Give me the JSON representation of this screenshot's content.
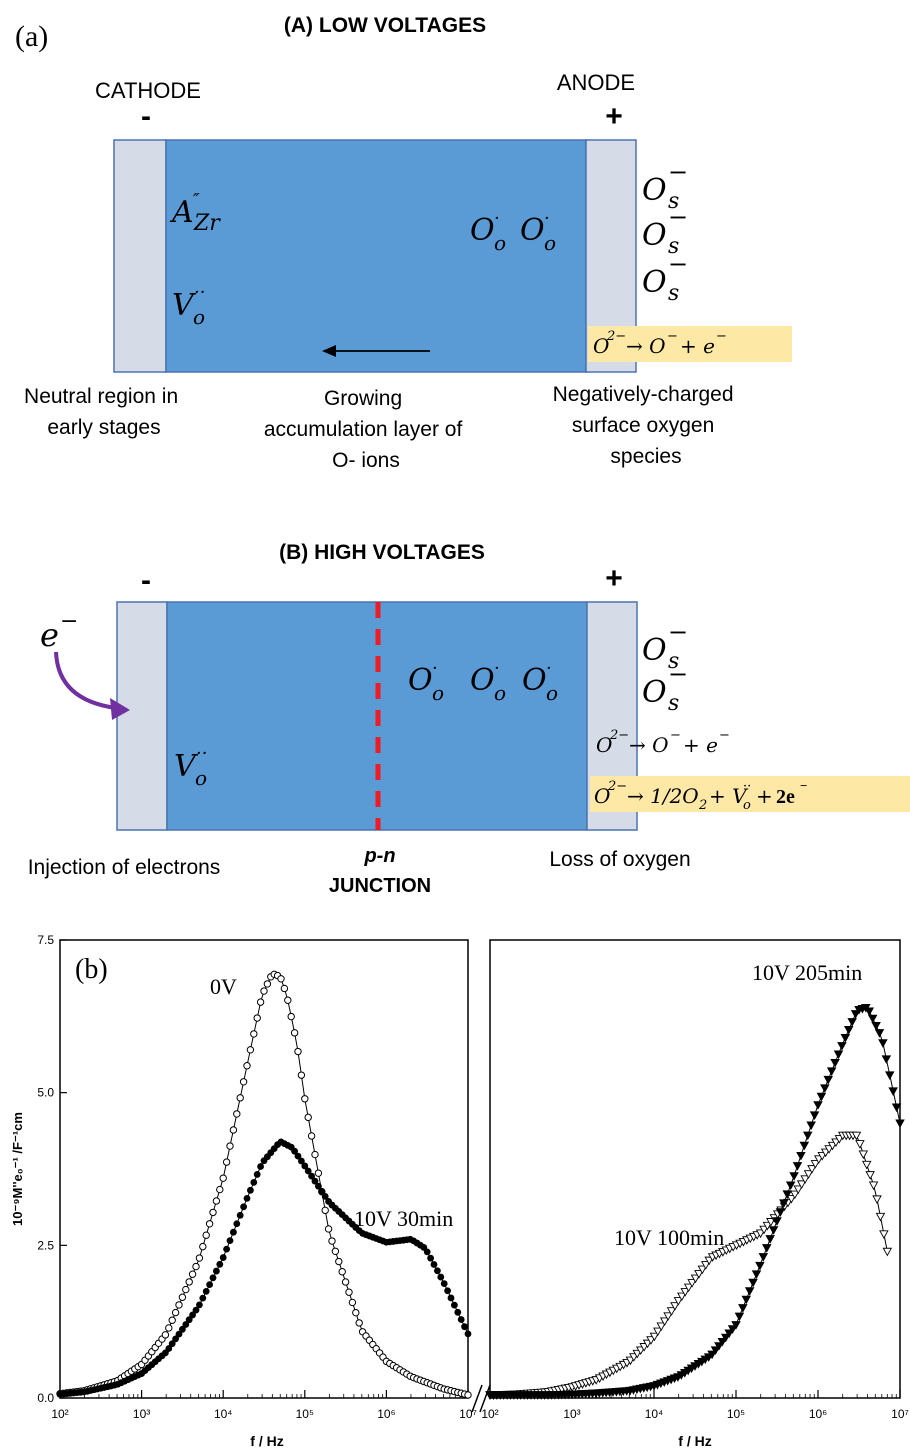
{
  "panel_a": {
    "label": "(a)",
    "title": "(A) LOW VOLTAGES",
    "cathode_label": "CATHODE",
    "anode_label": "ANODE",
    "minus_sign": "-",
    "plus_sign": "+",
    "species_left_top": "A″Zr",
    "species_left_bottom": "V··o",
    "species_center": "O·o O·o",
    "surface_species": [
      "O−s",
      "O−s",
      "O−s"
    ],
    "reaction": "O2− → O− + e−",
    "caption_left": [
      "Neutral region in",
      "early stages"
    ],
    "caption_center": [
      "Growing",
      "accumulation layer of",
      "O- ions"
    ],
    "caption_right": [
      "Negatively-charged",
      "surface oxygen",
      "species"
    ]
  },
  "panel_b_diagram": {
    "title": "(B) HIGH VOLTAGES",
    "minus_sign": "-",
    "plus_sign": "+",
    "electron": "e−",
    "species_left": "V··o",
    "species_center": "O·o O·o O·o",
    "surface_species": [
      "O−s",
      "O−s"
    ],
    "reaction_1": "O2− → O− + e−",
    "reaction_2": "O2− → 1/2O2 + V··o + 2e−",
    "caption_left": "Injection of electrons",
    "caption_center": [
      "p-n",
      "JUNCTION"
    ],
    "caption_right": "Loss of oxygen"
  },
  "colors": {
    "bulk": "#5b9bd5",
    "electrode": "#d6dce7",
    "highlight": "#fde8a6",
    "junction": "#ee1c25",
    "arrow": "#7030a0"
  },
  "chart_data": {
    "type": "scatter",
    "panel_label": "(b)",
    "xlabel": "f / Hz",
    "ylabel": "10⁻⁹M''e₀⁻¹ /F⁻¹cm",
    "x_scale": "log",
    "xlim": [
      100,
      10000000
    ],
    "ylim": [
      0,
      7.5
    ],
    "y_ticks": [
      "0.0",
      "2.5",
      "5.0",
      "7.5"
    ],
    "x_tick_labels": [
      "10²",
      "10³",
      "10⁴",
      "10⁵",
      "10⁶",
      "10⁷"
    ],
    "broken_axis": true,
    "legend": "none",
    "left_series": [
      {
        "name": "0V",
        "marker": "open-circle",
        "x": [
          100,
          200,
          500,
          1000,
          2000,
          5000,
          10000,
          20000,
          30000,
          40000,
          50000,
          60000,
          80000,
          100000,
          200000,
          500000,
          1000000,
          2000000,
          5000000,
          10000000
        ],
        "y": [
          0.07,
          0.12,
          0.28,
          0.55,
          1.05,
          2.25,
          3.6,
          5.5,
          6.6,
          6.95,
          6.9,
          6.6,
          5.8,
          4.9,
          2.7,
          1.1,
          0.6,
          0.35,
          0.15,
          0.05
        ]
      },
      {
        "name": "10V 30min",
        "marker": "filled-circle",
        "x": [
          100,
          200,
          500,
          1000,
          2000,
          5000,
          10000,
          20000,
          30000,
          50000,
          70000,
          100000,
          200000,
          500000,
          1000000,
          2000000,
          3000000,
          5000000,
          10000000
        ],
        "y": [
          0.06,
          0.1,
          0.22,
          0.4,
          0.75,
          1.5,
          2.3,
          3.3,
          3.85,
          4.2,
          4.1,
          3.8,
          3.2,
          2.7,
          2.55,
          2.6,
          2.45,
          1.9,
          1.05
        ]
      }
    ],
    "right_series": [
      {
        "name": "10V 100min",
        "marker": "open-triangle-down",
        "x": [
          100,
          200,
          500,
          1000,
          2000,
          5000,
          10000,
          20000,
          50000,
          100000,
          200000,
          500000,
          1000000,
          2000000,
          3000000,
          5000000,
          7000000
        ],
        "y": [
          0.05,
          0.06,
          0.1,
          0.18,
          0.3,
          0.6,
          1.0,
          1.6,
          2.3,
          2.5,
          2.7,
          3.3,
          3.9,
          4.3,
          4.3,
          3.4,
          2.4
        ]
      },
      {
        "name": "10V 205min",
        "marker": "filled-triangle-down",
        "x": [
          100,
          500,
          1000,
          2000,
          5000,
          10000,
          20000,
          50000,
          100000,
          200000,
          500000,
          1000000,
          2000000,
          3000000,
          4000000,
          6000000,
          10000000
        ],
        "y": [
          0.05,
          0.05,
          0.06,
          0.08,
          0.12,
          0.2,
          0.35,
          0.7,
          1.2,
          2.2,
          3.6,
          4.8,
          5.8,
          6.35,
          6.4,
          5.9,
          4.5
        ]
      }
    ],
    "annotations": [
      "0V",
      "10V 30min",
      "10V 100min",
      "10V 205min"
    ]
  }
}
